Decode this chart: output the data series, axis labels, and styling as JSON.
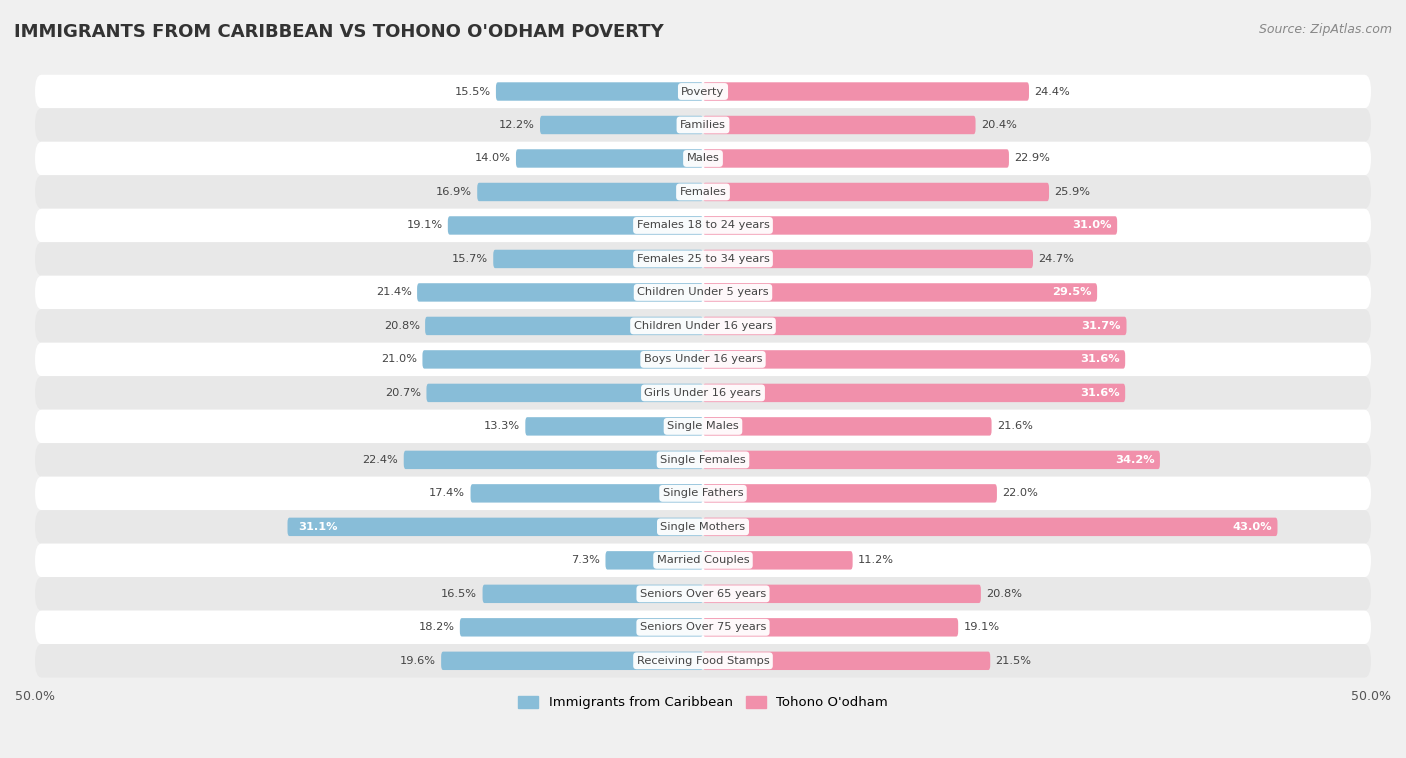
{
  "title": "IMMIGRANTS FROM CARIBBEAN VS TOHONO O'ODHAM POVERTY",
  "source": "Source: ZipAtlas.com",
  "categories": [
    "Poverty",
    "Families",
    "Males",
    "Females",
    "Females 18 to 24 years",
    "Females 25 to 34 years",
    "Children Under 5 years",
    "Children Under 16 years",
    "Boys Under 16 years",
    "Girls Under 16 years",
    "Single Males",
    "Single Females",
    "Single Fathers",
    "Single Mothers",
    "Married Couples",
    "Seniors Over 65 years",
    "Seniors Over 75 years",
    "Receiving Food Stamps"
  ],
  "left_values": [
    15.5,
    12.2,
    14.0,
    16.9,
    19.1,
    15.7,
    21.4,
    20.8,
    21.0,
    20.7,
    13.3,
    22.4,
    17.4,
    31.1,
    7.3,
    16.5,
    18.2,
    19.6
  ],
  "right_values": [
    24.4,
    20.4,
    22.9,
    25.9,
    31.0,
    24.7,
    29.5,
    31.7,
    31.6,
    31.6,
    21.6,
    34.2,
    22.0,
    43.0,
    11.2,
    20.8,
    19.1,
    21.5
  ],
  "left_color": "#88bdd8",
  "right_color": "#f190ab",
  "max_val": 50.0,
  "left_label": "Immigrants from Caribbean",
  "right_label": "Tohono O'odham",
  "title_fontsize": 13,
  "source_fontsize": 9,
  "bar_height": 0.55,
  "bg_color": "#f0f0f0",
  "row_color_even": "#ffffff",
  "row_color_odd": "#e8e8e8",
  "label_fontsize": 8.2,
  "value_fontsize": 8.2,
  "value_inside_threshold": 28.0
}
